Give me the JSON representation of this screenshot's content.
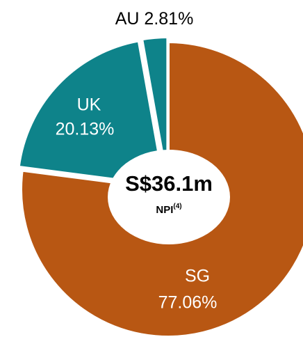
{
  "chart_data": {
    "type": "donut",
    "categories": [
      "SG",
      "UK",
      "AU"
    ],
    "values": [
      77.06,
      20.13,
      2.81
    ],
    "value_labels": [
      "77.06%",
      "20.13%",
      "2.81%"
    ],
    "colors": [
      "#b85713",
      "#0e838a",
      "#0e838a"
    ],
    "center_title": "S$36.1m",
    "center_label": "NPI",
    "center_note": "(4)"
  }
}
